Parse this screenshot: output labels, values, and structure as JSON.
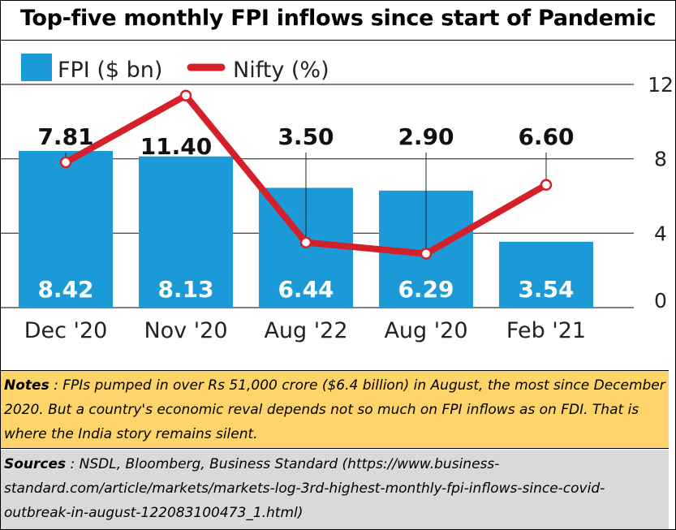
{
  "title": "Top-five monthly FPI inflows since start of Pandemic",
  "legend": {
    "fpi_label": "FPI ($ bn)",
    "nifty_label": "Nifty (%)"
  },
  "colors": {
    "bar": "#1b9ad7",
    "line": "#d42028",
    "grid": "#333333",
    "notes_bg": "#fdd46a",
    "sources_bg": "#d9d9d9"
  },
  "chart_data": {
    "type": "bar",
    "categories": [
      "Dec '20",
      "Nov '20",
      "Aug '22",
      "Aug '20",
      "Feb '21"
    ],
    "series": [
      {
        "name": "FPI ($ bn)",
        "type": "bar",
        "values": [
          8.42,
          8.13,
          6.44,
          6.29,
          3.54
        ]
      },
      {
        "name": "Nifty (%)",
        "type": "line",
        "values": [
          7.81,
          11.4,
          3.5,
          2.9,
          6.6
        ]
      }
    ],
    "bar_labels": [
      "8.42",
      "8.13",
      "6.44",
      "6.29",
      "3.54"
    ],
    "line_labels": [
      "7.81",
      "11.40",
      "3.50",
      "2.90",
      "6.60"
    ],
    "y_ticks": [
      "0",
      "4",
      "8",
      "12"
    ],
    "ylim": [
      0,
      12
    ],
    "legend_position": "top-left",
    "grid": true
  },
  "notes": {
    "label": "Notes",
    "text": " : FPIs pumped in over Rs 51,000 crore ($6.4 billion) in August, the most since December 2020. But a country's economic reval depends not so much on FPI inflows as on FDI.  That is where the India story remains silent."
  },
  "sources": {
    "label": "Sources",
    "text": " : NSDL, Bloomberg, Business Standard (https://www.business-standard.com/article/markets/markets-log-3rd-highest-monthly-fpi-inflows-since-covid-outbreak-in-august-122083100473_1.html)"
  }
}
